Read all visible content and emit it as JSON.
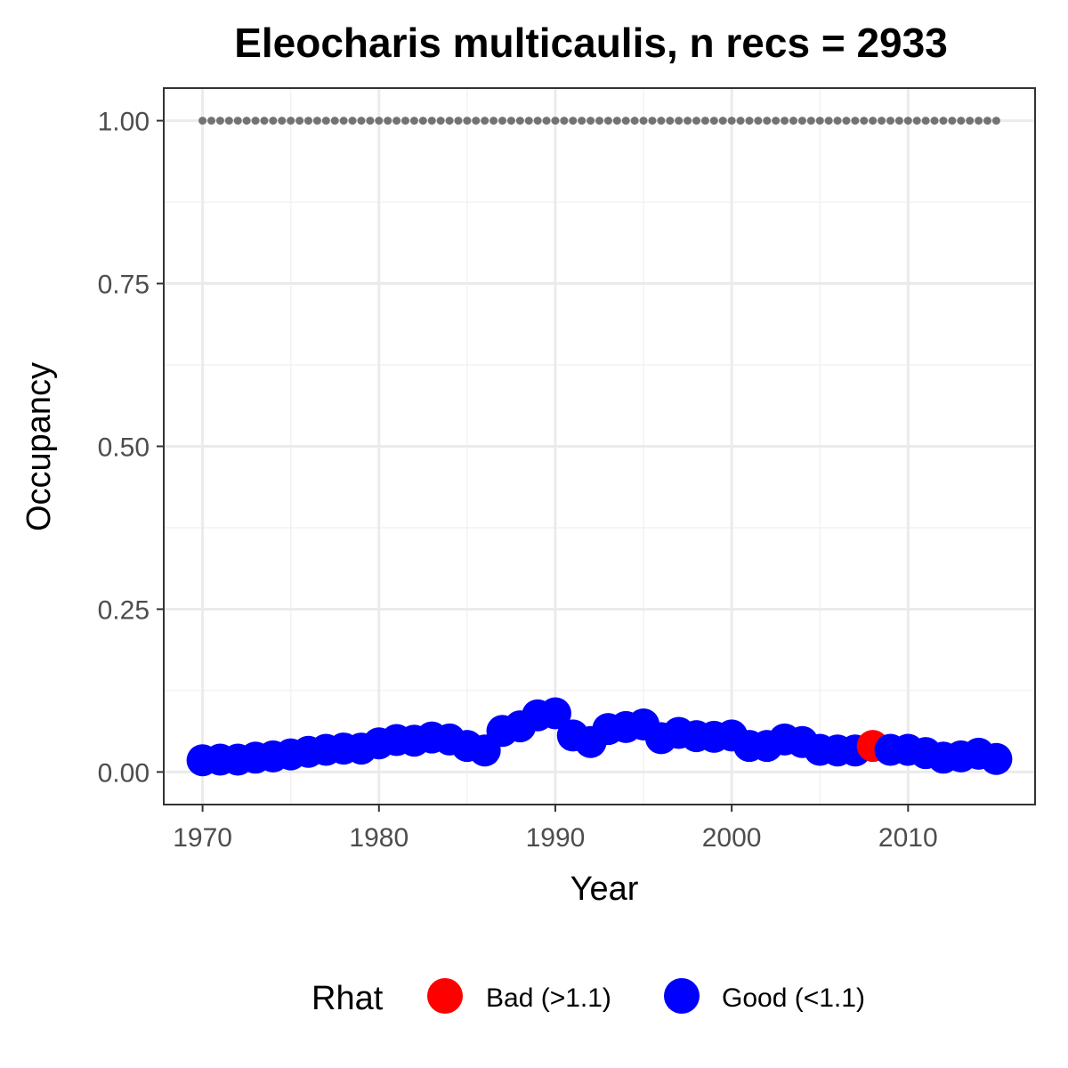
{
  "chart_data": {
    "type": "scatter",
    "title": "Eleocharis multicaulis, n recs = 2933",
    "xlabel": "Year",
    "ylabel": "Occupancy",
    "xlim": [
      1967.8,
      2017.2
    ],
    "ylim": [
      -0.05,
      1.05
    ],
    "x_ticks": [
      1970,
      1980,
      1990,
      2000,
      2010
    ],
    "x_tick_labels": [
      "1970",
      "1980",
      "1990",
      "2000",
      "2010"
    ],
    "y_ticks": [
      0,
      0.25,
      0.5,
      0.75,
      1.0
    ],
    "y_tick_labels": [
      "0.00",
      "0.25",
      "0.50",
      "0.75",
      "1.00"
    ],
    "grid": true,
    "legend": {
      "title": "Rhat",
      "position": "bottom",
      "entries": [
        {
          "label": "Bad (>1.1)",
          "color": "#ff0000"
        },
        {
          "label": "Good (<1.1)",
          "color": "#0000ff"
        }
      ]
    },
    "series": [
      {
        "name": "Good (<1.1)",
        "color": "#0000ff",
        "x": [
          1970,
          1971,
          1972,
          1973,
          1974,
          1975,
          1976,
          1977,
          1978,
          1979,
          1980,
          1981,
          1982,
          1983,
          1984,
          1985,
          1986,
          1987,
          1988,
          1989,
          1990,
          1991,
          1992,
          1993,
          1994,
          1995,
          1996,
          1997,
          1998,
          1999,
          2000,
          2001,
          2002,
          2003,
          2004,
          2005,
          2006,
          2007,
          2009,
          2010,
          2011,
          2012,
          2013,
          2014,
          2015
        ],
        "y": [
          0.018,
          0.019,
          0.019,
          0.022,
          0.024,
          0.027,
          0.031,
          0.034,
          0.036,
          0.036,
          0.044,
          0.049,
          0.048,
          0.053,
          0.05,
          0.04,
          0.033,
          0.063,
          0.07,
          0.087,
          0.09,
          0.056,
          0.046,
          0.066,
          0.069,
          0.073,
          0.052,
          0.06,
          0.055,
          0.054,
          0.056,
          0.04,
          0.04,
          0.05,
          0.046,
          0.034,
          0.033,
          0.033,
          0.034,
          0.034,
          0.029,
          0.022,
          0.024,
          0.028,
          0.02
        ]
      },
      {
        "name": "Bad (>1.1)",
        "color": "#ff0000",
        "x": [
          2008
        ],
        "y": [
          0.04
        ]
      }
    ],
    "reference_line": {
      "y": 1.0,
      "x": [
        1970,
        1971,
        1972,
        1973,
        1974,
        1975,
        1976,
        1977,
        1978,
        1979,
        1980,
        1981,
        1982,
        1983,
        1984,
        1985,
        1986,
        1987,
        1988,
        1989,
        1990,
        1991,
        1992,
        1993,
        1994,
        1995,
        1996,
        1997,
        1998,
        1999,
        2000,
        2001,
        2002,
        2003,
        2004,
        2005,
        2006,
        2007,
        2008,
        2009,
        2010,
        2011,
        2012,
        2013,
        2014,
        2015
      ],
      "color": "#737373"
    }
  }
}
